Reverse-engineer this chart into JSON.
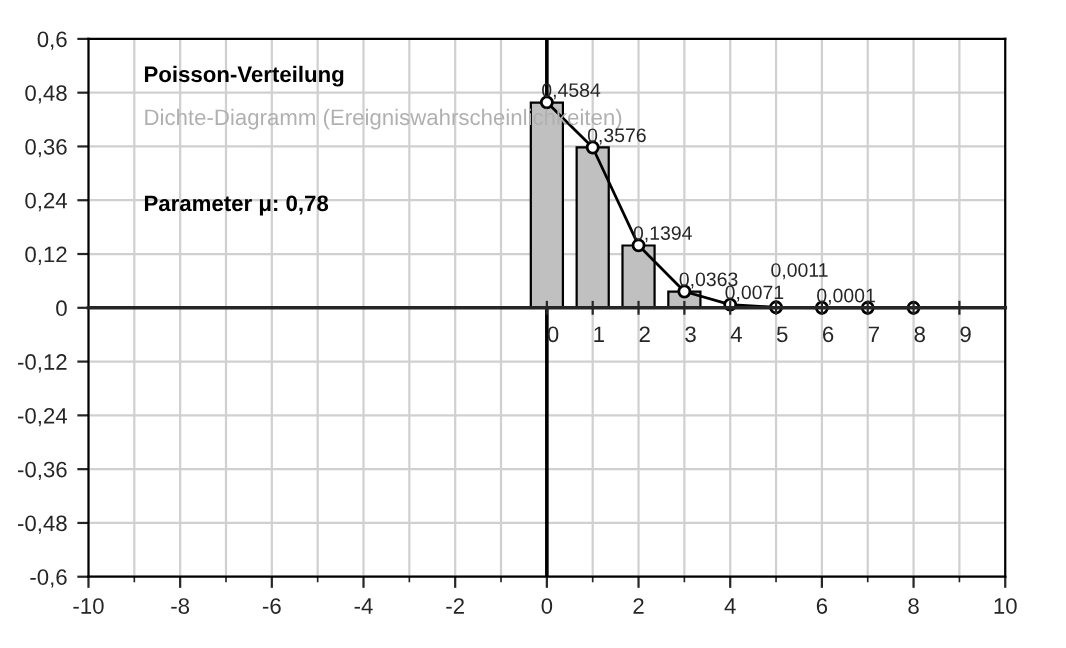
{
  "chart_data": {
    "type": "bar",
    "x": [
      0,
      1,
      2,
      3,
      4,
      5,
      6,
      7,
      8
    ],
    "series": [
      {
        "color": "#c0c0c0",
        "x": [
          0,
          1,
          2,
          3
        ],
        "values": [
          0.458,
          0.358,
          0.139,
          0.036
        ]
      },
      {
        "type": "line",
        "color": "#000000",
        "values": [
          0.4584,
          0.3576,
          0.1394,
          0.0363,
          0.0071,
          0.0011,
          0.0001,
          0,
          0
        ],
        "value_labels": [
          "0,4584",
          "0,3576",
          "0,1394",
          "0,0363",
          "0,0071",
          "0,0011",
          "0,0001",
          null,
          null
        ]
      }
    ],
    "marker": "circle",
    "xlim": [
      -10,
      10
    ],
    "xticks": [
      -10,
      -8,
      -6,
      -4,
      -2,
      0,
      2,
      4,
      6,
      8,
      10
    ],
    "ylim": [
      -0.6,
      0.6
    ],
    "yticks": [
      {
        "value": -0.6,
        "label": "-0,6"
      },
      {
        "value": -0.48,
        "label": "-0,48"
      },
      {
        "value": -0.36,
        "label": "-0,36"
      },
      {
        "value": -0.24,
        "label": "-0,24"
      },
      {
        "value": -0.12,
        "label": "-0,12"
      },
      0,
      {
        "value": 0.12,
        "label": "0,12"
      },
      {
        "value": 0.24,
        "label": "0,24"
      },
      {
        "value": 0.36,
        "label": "0,36"
      },
      {
        "value": 0.48,
        "label": "0,48"
      },
      {
        "value": 0.6,
        "label": "0,6"
      }
    ],
    "grid": true,
    "ref_lines": [
      {
        "axis": "x",
        "value": 0,
        "color": "#000000"
      }
    ],
    "x2lim": [
      -10,
      10
    ],
    "x2ticks": [
      0,
      1,
      2,
      3,
      4,
      5,
      6,
      7,
      8,
      9
    ],
    "annotations": [
      "Poisson-Verteilung",
      "Dichte-Diagramm (Ereigniswahrscheinlichkeiten)",
      "Parameter μ: 0,78"
    ]
  }
}
